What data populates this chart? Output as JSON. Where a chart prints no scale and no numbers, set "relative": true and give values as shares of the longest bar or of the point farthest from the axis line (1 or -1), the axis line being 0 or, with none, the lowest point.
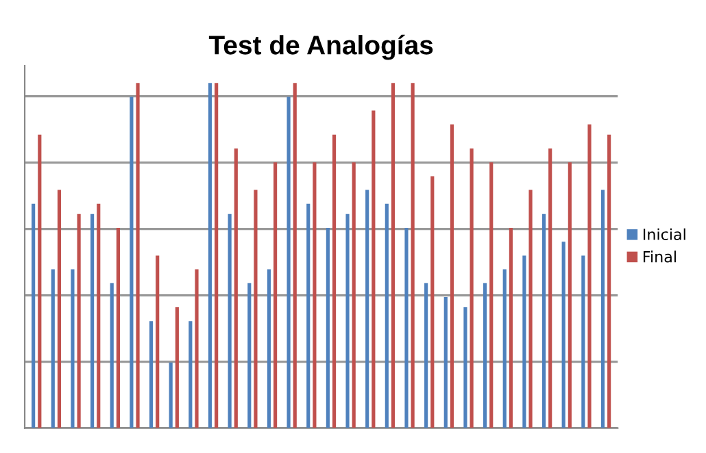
{
  "chart_data": {
    "type": "bar",
    "title": "Test de Analogías",
    "relative": true,
    "categories": [
      null,
      null,
      null,
      null,
      null,
      null,
      null,
      null,
      null,
      null,
      null,
      null,
      null,
      null,
      null,
      null,
      null,
      null,
      null,
      null,
      null,
      null,
      null,
      null,
      null,
      null,
      null,
      null,
      null,
      null
    ],
    "series": [
      {
        "name": "Inicial",
        "color": "#4f81bd",
        "values": [
          0.65,
          0.46,
          0.46,
          0.62,
          0.42,
          0.96,
          0.31,
          0.19,
          0.31,
          1,
          0.62,
          0.42,
          0.46,
          0.96,
          0.65,
          0.58,
          0.62,
          0.69,
          0.65,
          0.58,
          0.42,
          0.38,
          0.35,
          0.42,
          0.46,
          0.5,
          0.62,
          0.54,
          0.5,
          0.69
        ]
      },
      {
        "name": "Final",
        "color": "#c0504d",
        "values": [
          0.85,
          0.69,
          0.62,
          0.65,
          0.58,
          1,
          0.5,
          0.35,
          0.46,
          1,
          0.81,
          0.69,
          0.77,
          1,
          0.77,
          0.85,
          0.77,
          0.92,
          1,
          1,
          0.73,
          0.88,
          0.81,
          0.77,
          0.58,
          0.69,
          0.81,
          0.77,
          0.88,
          0.85
        ]
      }
    ],
    "grid": "y",
    "legend": "right"
  }
}
